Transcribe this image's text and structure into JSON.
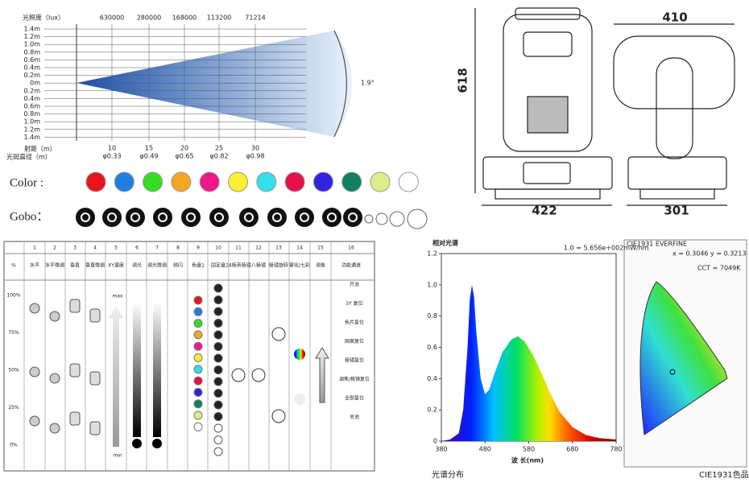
{
  "beam": {
    "illuminance_label": "光照度（lux）",
    "lux": [
      "630000",
      "280000",
      "168000",
      "113200",
      "71214"
    ],
    "height_labels": [
      "1.4m",
      "1.2m",
      "1.0m",
      "0.8m",
      "0.6m",
      "0.4m",
      "0.2m",
      "0m",
      "0.2m",
      "0.4m",
      "0.6m",
      "0.8m",
      "1.0m",
      "1.2m",
      "1.4m"
    ],
    "distance_label": "射距（m）",
    "diameter_label": "光斑直径（m）",
    "distances": [
      "10",
      "15",
      "20",
      "25",
      "30"
    ],
    "diameters": [
      "φ0.33",
      "φ0.49",
      "φ0.65",
      "φ0.82",
      "φ0.98"
    ],
    "angle": "1.9°"
  },
  "colors": {
    "label": "Color :",
    "swatches": [
      "#e8141c",
      "#1e7fe0",
      "#33dd22",
      "#f5a623",
      "#f01888",
      "#f8f030",
      "#33e0ea",
      "#e8104c",
      "#3322dd",
      "#108060",
      "#dcee8a",
      "#ffffff"
    ]
  },
  "gobo": {
    "label": "Gobo："
  },
  "dimensions": {
    "height": "618",
    "width_top": "410",
    "width_front": "422",
    "width_side": "301"
  },
  "dmx_table": {
    "numbers": [
      "1",
      "2",
      "3",
      "4",
      "5",
      "6",
      "7",
      "8",
      "9",
      "10",
      "11",
      "12",
      "13",
      "14",
      "15",
      "16"
    ],
    "header": [
      "%",
      "水平",
      "水平微调",
      "垂直",
      "垂直微调",
      "XY速度",
      "调光",
      "调光微调",
      "频闪",
      "色盘1",
      "固定盘",
      "24棱英棱镜",
      "八棱镜",
      "棱镜旋转",
      "雾化/七彩",
      "调焦",
      "功能通道"
    ],
    "percents": [
      "100%",
      "75%",
      "50%",
      "25%",
      "0%"
    ],
    "speed_max": "max",
    "speed_min": "min",
    "functions": [
      "开池",
      "3Y 复位",
      "色片复位",
      "固案复位",
      "棱镜复位",
      "调焦/棱镜复位",
      "全部复位",
      "关池"
    ]
  },
  "chart_data": {
    "type": "area",
    "title": "相对光谱",
    "subtitle": "1.0 = 5.656e+002mW/nm",
    "x_label": "波 长(nm)",
    "caption": "光谱分布",
    "x": [
      380,
      400,
      420,
      430,
      440,
      445,
      450,
      455,
      460,
      470,
      480,
      490,
      500,
      520,
      540,
      555,
      570,
      590,
      610,
      630,
      650,
      680,
      710,
      740,
      780
    ],
    "values": [
      0,
      0.01,
      0.05,
      0.2,
      0.6,
      0.9,
      1.0,
      0.92,
      0.7,
      0.4,
      0.3,
      0.33,
      0.42,
      0.57,
      0.65,
      0.67,
      0.64,
      0.55,
      0.43,
      0.3,
      0.19,
      0.09,
      0.04,
      0.02,
      0.01
    ],
    "xlim": [
      380,
      780
    ],
    "ylim": [
      0,
      1.2
    ],
    "xticks": [
      380,
      480,
      580,
      680,
      780
    ],
    "yticks": [
      0,
      0.2,
      0.4,
      0.6,
      0.8,
      {
        "value": 1,
        "label": "1.0"
      },
      1.2
    ]
  },
  "cie": {
    "title": "CIE1931 EVERFINE",
    "coords": "x = 0.3046 y = 0.3213",
    "cct": "CCT = 7049K",
    "caption": "CIE1931色品图"
  }
}
